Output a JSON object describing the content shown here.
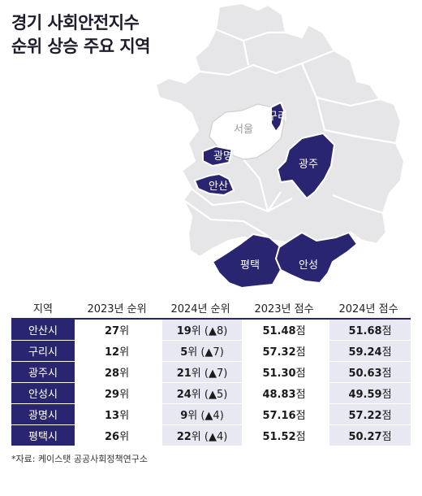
{
  "title": {
    "line1": "경기 사회안전지수",
    "line2": "순위 상승 주요 지역"
  },
  "map": {
    "labels": {
      "seoul": "서울",
      "guri": "구리",
      "gwangmyeong": "광명",
      "ansan": "안산",
      "gwangju": "광주",
      "pyeongtaek": "평택",
      "anseong": "안성"
    },
    "colors": {
      "highlight": "#2a2570",
      "other": "#e6e6e9",
      "seoul": "#ffffff"
    }
  },
  "table": {
    "headers": [
      "지역",
      "2023년 순위",
      "2024년 순위",
      "2023년 점수",
      "2024년 점수"
    ],
    "rows": [
      {
        "region": "안산시",
        "rank2023": "27",
        "rank2024": "19",
        "rank_change": "(▲8)",
        "score2023": "51.48",
        "score2024": "51.68"
      },
      {
        "region": "구리시",
        "rank2023": "12",
        "rank2024": "5",
        "rank_change": "(▲7)",
        "score2023": "57.32",
        "score2024": "59.24"
      },
      {
        "region": "광주시",
        "rank2023": "28",
        "rank2024": "21",
        "rank_change": "(▲7)",
        "score2023": "51.30",
        "score2024": "50.63"
      },
      {
        "region": "안성시",
        "rank2023": "29",
        "rank2024": "24",
        "rank_change": "(▲5)",
        "score2023": "48.83",
        "score2024": "49.59"
      },
      {
        "region": "광명시",
        "rank2023": "13",
        "rank2024": "9",
        "rank_change": "(▲4)",
        "score2023": "57.16",
        "score2024": "57.22"
      },
      {
        "region": "평택시",
        "rank2023": "26",
        "rank2024": "22",
        "rank_change": "(▲4)",
        "score2023": "51.52",
        "score2024": "50.27"
      }
    ],
    "rank_suffix": "위",
    "score_suffix": "점"
  },
  "source": "*자료: 케이스탯 공공사회정책연구소"
}
